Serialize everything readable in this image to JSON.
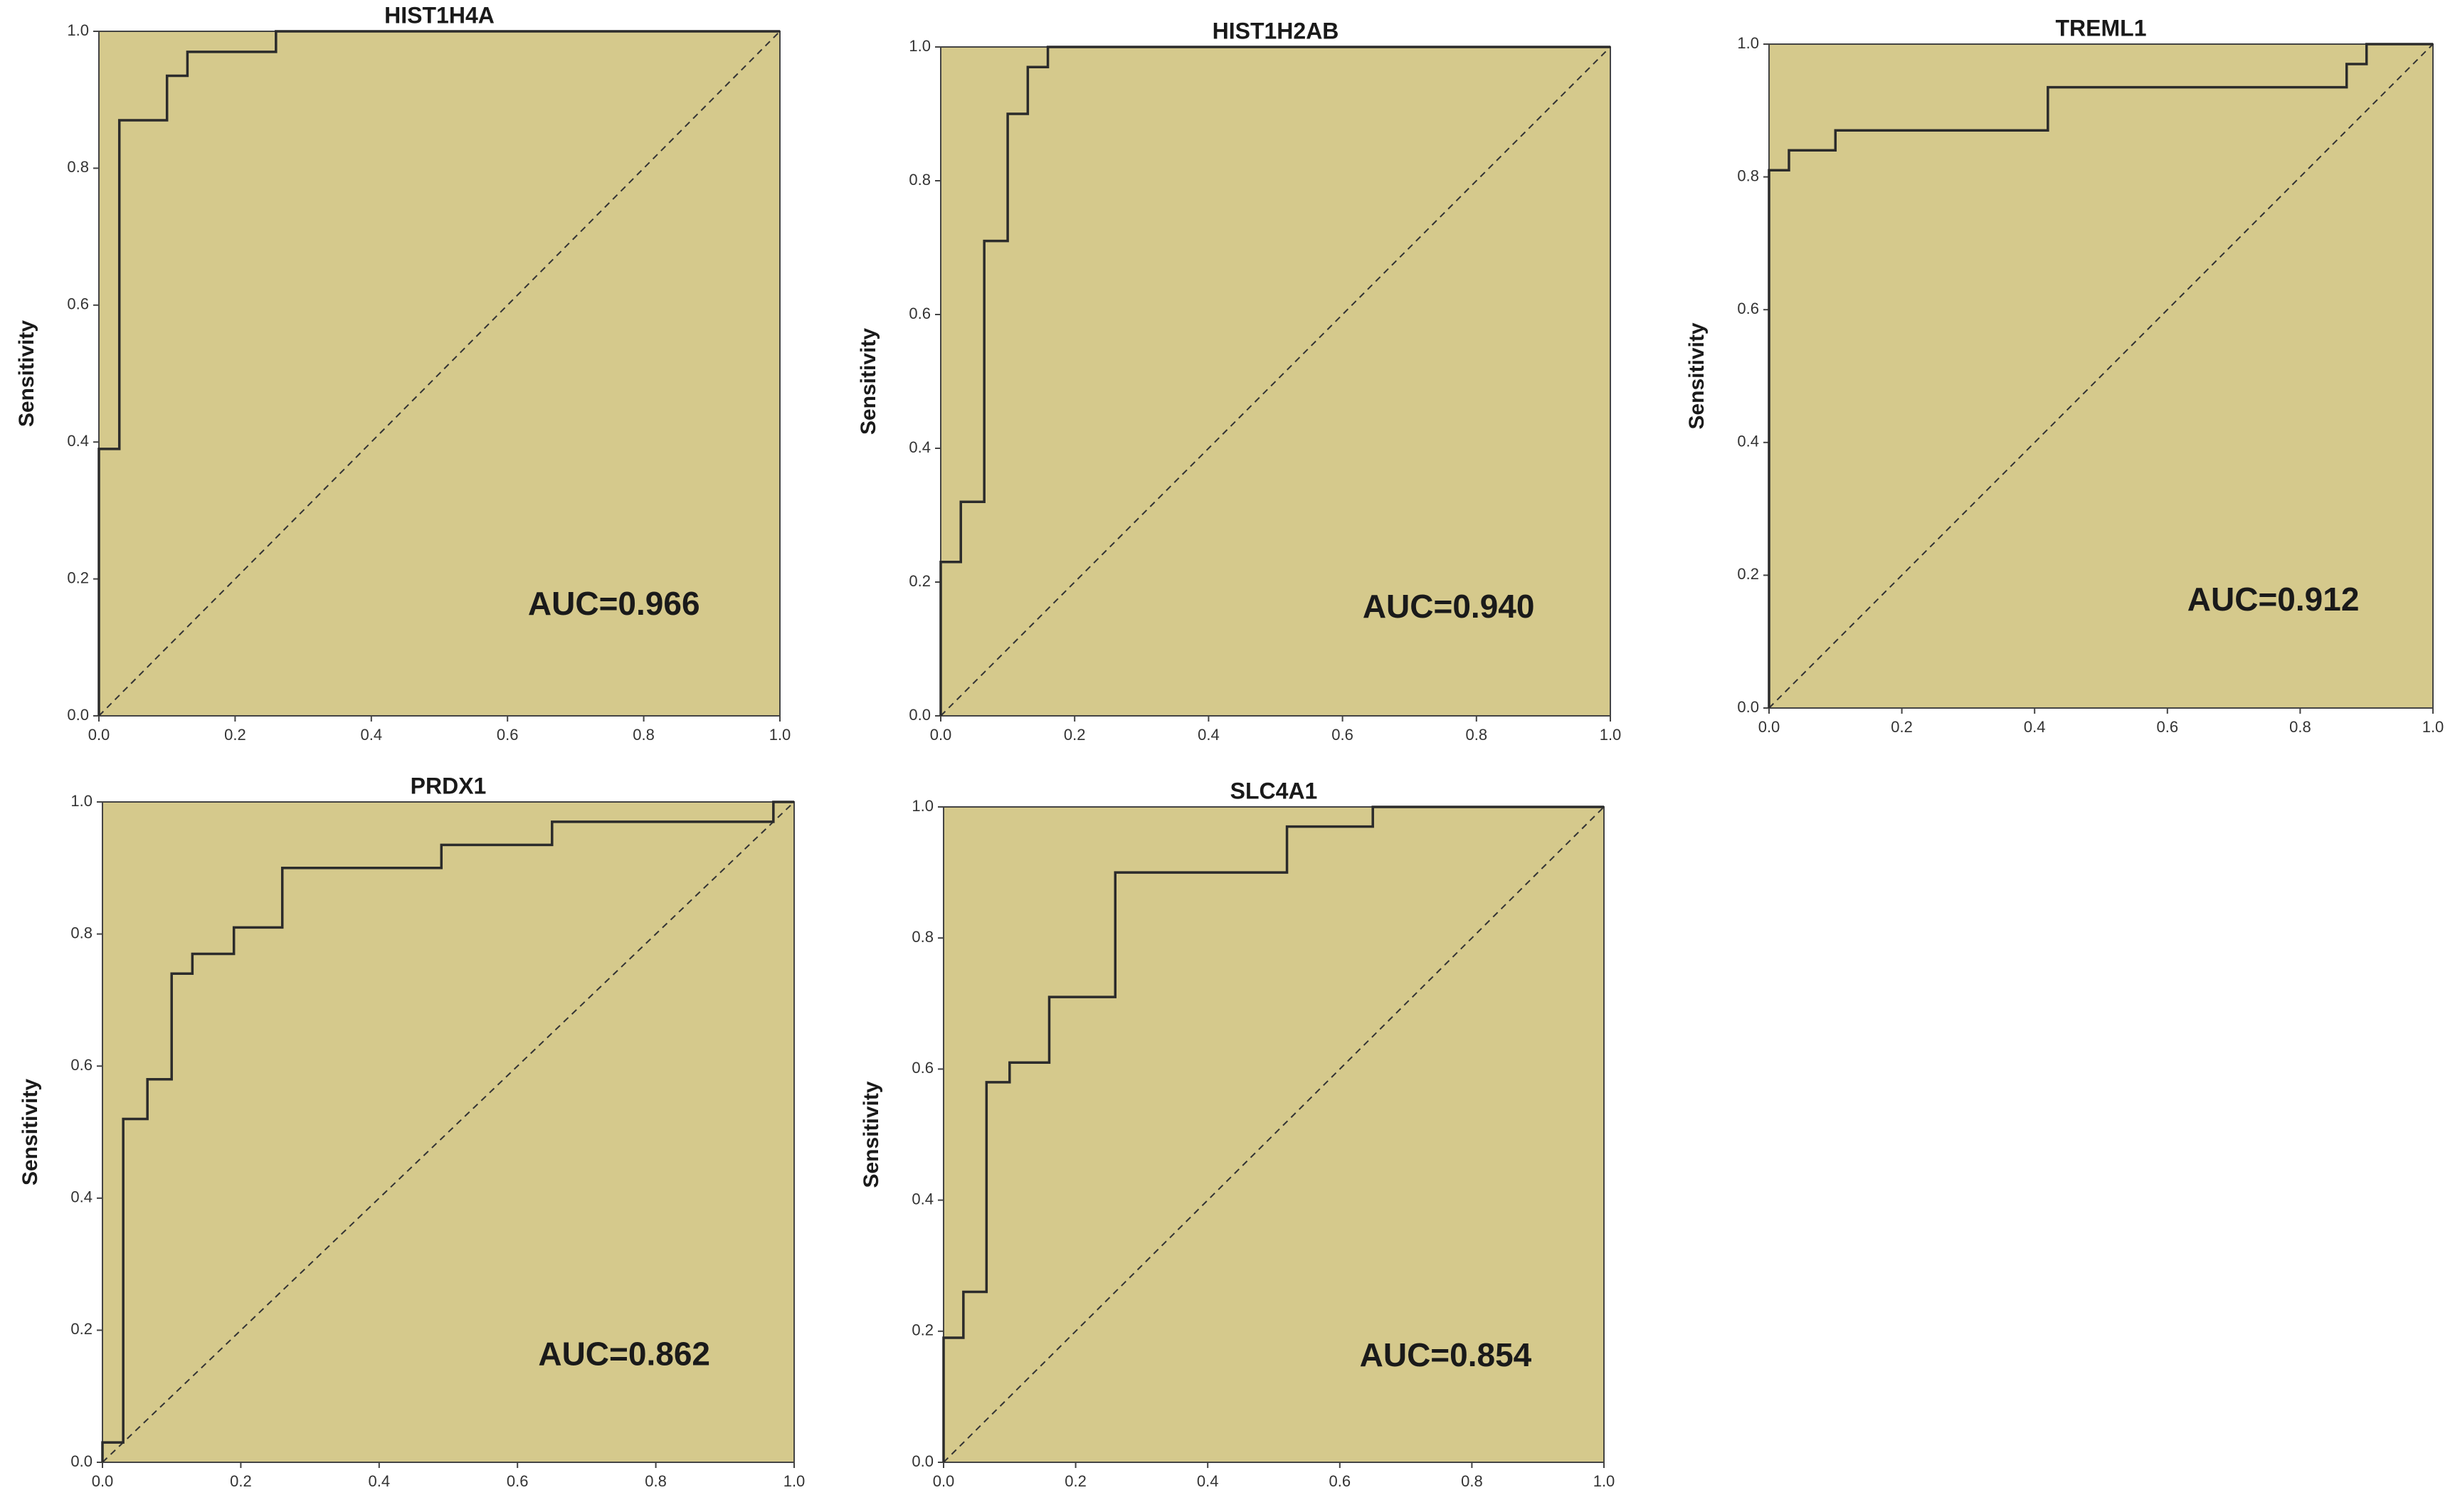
{
  "chart_data": [
    {
      "type": "line",
      "title": "HIST1H4A",
      "ylabel": "Sensitivity",
      "annotation": "AUC=0.966",
      "color": "#2b2b2b",
      "x": [
        0,
        0,
        0.03,
        0.03,
        0.1,
        0.1,
        0.13,
        0.13,
        0.26,
        0.26,
        1
      ],
      "values": [
        0,
        0.39,
        0.39,
        0.87,
        0.87,
        0.935,
        0.935,
        0.97,
        0.97,
        1,
        1
      ],
      "xlim": [
        0,
        1
      ],
      "ylim": [
        0,
        1
      ],
      "xticks": [
        {
          "value": 0,
          "label": "0.0"
        },
        0.2,
        0.4,
        0.6,
        0.8,
        {
          "value": 1,
          "label": "1.0"
        }
      ],
      "yticks": [
        {
          "value": 0,
          "label": "0.0"
        },
        0.2,
        0.4,
        0.6,
        0.8,
        {
          "value": 1,
          "label": "1.0"
        }
      ]
    },
    {
      "type": "line",
      "title": "HIST1H2AB",
      "ylabel": "Sensitivity",
      "annotation": "AUC=0.940",
      "color": "#2b2b2b",
      "x": [
        0,
        0,
        0.03,
        0.03,
        0.065,
        0.065,
        0.1,
        0.1,
        0.13,
        0.13,
        0.16,
        0.16,
        1
      ],
      "values": [
        0,
        0.23,
        0.23,
        0.32,
        0.32,
        0.71,
        0.71,
        0.9,
        0.9,
        0.97,
        0.97,
        1,
        1
      ],
      "xlim": [
        0,
        1
      ],
      "ylim": [
        0,
        1
      ],
      "xticks": [
        {
          "value": 0,
          "label": "0.0"
        },
        0.2,
        0.4,
        0.6,
        0.8,
        {
          "value": 1,
          "label": "1.0"
        }
      ],
      "yticks": [
        {
          "value": 0,
          "label": "0.0"
        },
        0.2,
        0.4,
        0.6,
        0.8,
        {
          "value": 1,
          "label": "1.0"
        }
      ]
    },
    {
      "type": "line",
      "title": "TREML1",
      "ylabel": "Sensitivity",
      "annotation": "AUC=0.912",
      "color": "#2b2b2b",
      "x": [
        0,
        0,
        0.03,
        0.03,
        0.1,
        0.1,
        0.42,
        0.42,
        0.87,
        0.87,
        0.9,
        0.9,
        1
      ],
      "values": [
        0,
        0.81,
        0.81,
        0.84,
        0.84,
        0.87,
        0.87,
        0.935,
        0.935,
        0.97,
        0.97,
        1,
        1
      ],
      "xlim": [
        0,
        1
      ],
      "ylim": [
        0,
        1
      ],
      "xticks": [
        {
          "value": 0,
          "label": "0.0"
        },
        0.2,
        0.4,
        0.6,
        0.8,
        {
          "value": 1,
          "label": "1.0"
        }
      ],
      "yticks": [
        {
          "value": 0,
          "label": "0.0"
        },
        0.2,
        0.4,
        0.6,
        0.8,
        {
          "value": 1,
          "label": "1.0"
        }
      ]
    },
    {
      "type": "line",
      "title": "PRDX1",
      "ylabel": "Sensitivity",
      "annotation": "AUC=0.862",
      "color": "#2b2b2b",
      "x": [
        0,
        0,
        0.03,
        0.03,
        0.065,
        0.065,
        0.1,
        0.1,
        0.13,
        0.13,
        0.19,
        0.19,
        0.26,
        0.26,
        0.49,
        0.49,
        0.65,
        0.65,
        0.97,
        0.97,
        1
      ],
      "values": [
        0,
        0.03,
        0.03,
        0.52,
        0.52,
        0.58,
        0.58,
        0.74,
        0.74,
        0.77,
        0.77,
        0.81,
        0.81,
        0.9,
        0.9,
        0.935,
        0.935,
        0.97,
        0.97,
        1,
        1
      ],
      "xlim": [
        0,
        1
      ],
      "ylim": [
        0,
        1
      ],
      "xticks": [
        {
          "value": 0,
          "label": "0.0"
        },
        0.2,
        0.4,
        0.6,
        0.8,
        {
          "value": 1,
          "label": "1.0"
        }
      ],
      "yticks": [
        {
          "value": 0,
          "label": "0.0"
        },
        0.2,
        0.4,
        0.6,
        0.8,
        {
          "value": 1,
          "label": "1.0"
        }
      ]
    },
    {
      "type": "line",
      "title": "SLC4A1",
      "ylabel": "Sensitivity",
      "annotation": "AUC=0.854",
      "color": "#2b2b2b",
      "x": [
        0,
        0,
        0.03,
        0.03,
        0.065,
        0.065,
        0.1,
        0.1,
        0.16,
        0.16,
        0.26,
        0.26,
        0.52,
        0.52,
        0.65,
        0.65,
        1
      ],
      "values": [
        0,
        0.19,
        0.19,
        0.26,
        0.26,
        0.58,
        0.58,
        0.61,
        0.61,
        0.71,
        0.71,
        0.9,
        0.9,
        0.97,
        0.97,
        1,
        1
      ],
      "xlim": [
        0,
        1
      ],
      "ylim": [
        0,
        1
      ],
      "xticks": [
        {
          "value": 0,
          "label": "0.0"
        },
        0.2,
        0.4,
        0.6,
        0.8,
        {
          "value": 1,
          "label": "1.0"
        }
      ],
      "yticks": [
        {
          "value": 0,
          "label": "0.0"
        },
        0.2,
        0.4,
        0.6,
        0.8,
        {
          "value": 1,
          "label": "1.0"
        }
      ]
    }
  ]
}
